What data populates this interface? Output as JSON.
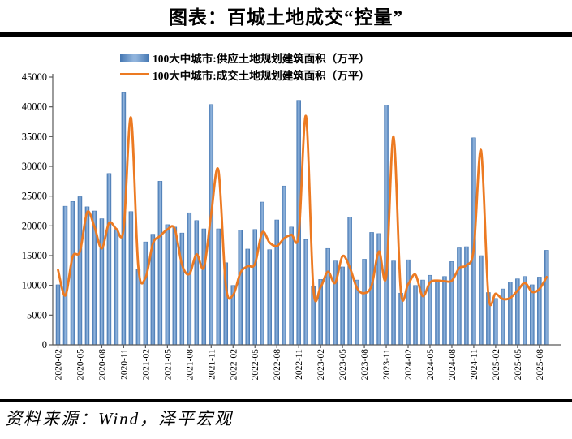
{
  "title": "图表：百城土地成交“控量”",
  "footer": {
    "source_text": "资料来源：Wind，泽平宏观"
  },
  "legend": [
    {
      "type": "bar",
      "label": "100大中城市:供应土地规划建筑面积（万平）",
      "color": "#4F81BD"
    },
    {
      "type": "line",
      "label": "100大中城市:成交土地规划建筑面积（万平）",
      "color": "#EC7A22"
    }
  ],
  "colors": {
    "bar_edge": "#4577B2",
    "bar_center": "#8FB3DC",
    "line": "#EC7A22",
    "axis": "#595959",
    "rule": "#000000"
  },
  "chart_data": {
    "type": "bar",
    "subtype": "bar+smooth-line combo",
    "categories": [
      "2020-02",
      "2020-03",
      "2020-04",
      "2020-05",
      "2020-06",
      "2020-07",
      "2020-08",
      "2020-09",
      "2020-10",
      "2020-11",
      "2020-12",
      "2021-01",
      "2021-02",
      "2021-03",
      "2021-04",
      "2021-05",
      "2021-06",
      "2021-07",
      "2021-08",
      "2021-09",
      "2021-10",
      "2021-11",
      "2021-12",
      "2022-01",
      "2022-02",
      "2022-03",
      "2022-04",
      "2022-05",
      "2022-06",
      "2022-07",
      "2022-08",
      "2022-09",
      "2022-10",
      "2022-11",
      "2022-12",
      "2023-01",
      "2023-02",
      "2023-03",
      "2023-04",
      "2023-05",
      "2023-06",
      "2023-07",
      "2023-08",
      "2023-09",
      "2023-10",
      "2023-11",
      "2023-12",
      "2024-01",
      "2024-02",
      "2024-03",
      "2024-04",
      "2024-05",
      "2024-06",
      "2024-07",
      "2024-08",
      "2024-09",
      "2024-10",
      "2024-11",
      "2024-12",
      "2025-01",
      "2025-02",
      "2025-03",
      "2025-04",
      "2025-05",
      "2025-06",
      "2025-07",
      "2025-08",
      "2025-09"
    ],
    "series": [
      {
        "name": "100大中城市:供应土地规划建筑面积（万平）",
        "type": "bar",
        "color": "#4F81BD",
        "values": [
          10100,
          23300,
          24100,
          24900,
          23200,
          22500,
          21200,
          28800,
          19400,
          42500,
          22400,
          12700,
          17300,
          18600,
          27500,
          20200,
          19800,
          18800,
          22200,
          20900,
          19500,
          40400,
          19500,
          13800,
          10000,
          19300,
          16100,
          19400,
          24000,
          16000,
          21000,
          26700,
          19800,
          41100,
          17700,
          9800,
          11000,
          16200,
          14100,
          13100,
          21500,
          10900,
          14400,
          18900,
          18700,
          40300,
          14100,
          8700,
          14300,
          10000,
          10900,
          11700,
          10600,
          11500,
          14000,
          16300,
          16500,
          34800,
          15000,
          8800,
          7800,
          9400,
          10600,
          11100,
          11500,
          10100,
          11400,
          15900
        ]
      },
      {
        "name": "100大中城市:成交土地规划建筑面积（万平）",
        "type": "line",
        "color": "#EC7A22",
        "values": [
          12600,
          8300,
          14800,
          15700,
          22300,
          19800,
          16200,
          20500,
          19500,
          19500,
          38200,
          13200,
          11300,
          17000,
          18300,
          19400,
          19500,
          13500,
          11900,
          15200,
          13000,
          22000,
          29300,
          10000,
          8400,
          12100,
          13200,
          13600,
          18900,
          17200,
          16600,
          17900,
          18500,
          18600,
          38400,
          9500,
          9700,
          12300,
          10400,
          14900,
          13000,
          9500,
          8700,
          10000,
          15700,
          11600,
          35000,
          9100,
          10200,
          11800,
          8200,
          10500,
          10800,
          10700,
          10800,
          12900,
          13400,
          16100,
          32700,
          8400,
          8600,
          7700,
          7900,
          9100,
          10400,
          8900,
          9400,
          11400
        ]
      }
    ],
    "title": "图表：百城土地成交“控量”",
    "xlabel": "",
    "ylabel": "",
    "ylim": [
      0,
      45000
    ],
    "y_ticks": [
      0,
      5000,
      10000,
      15000,
      20000,
      25000,
      30000,
      35000,
      40000,
      45000
    ],
    "x_tick_every": 3,
    "x_tick_labels": [
      "2020-02",
      "2020-05",
      "2020-08",
      "2020-11",
      "2021-02",
      "2021-05",
      "2021-08",
      "2021-11",
      "2022-02",
      "2022-05",
      "2022-08",
      "2022-11",
      "2023-02",
      "2023-05",
      "2023-08",
      "2023-11",
      "2024-02",
      "2024-05",
      "2024-08",
      "2024-11",
      "2025-02",
      "2025-05",
      "2025-08"
    ],
    "grid": false,
    "legend_position": "top"
  }
}
